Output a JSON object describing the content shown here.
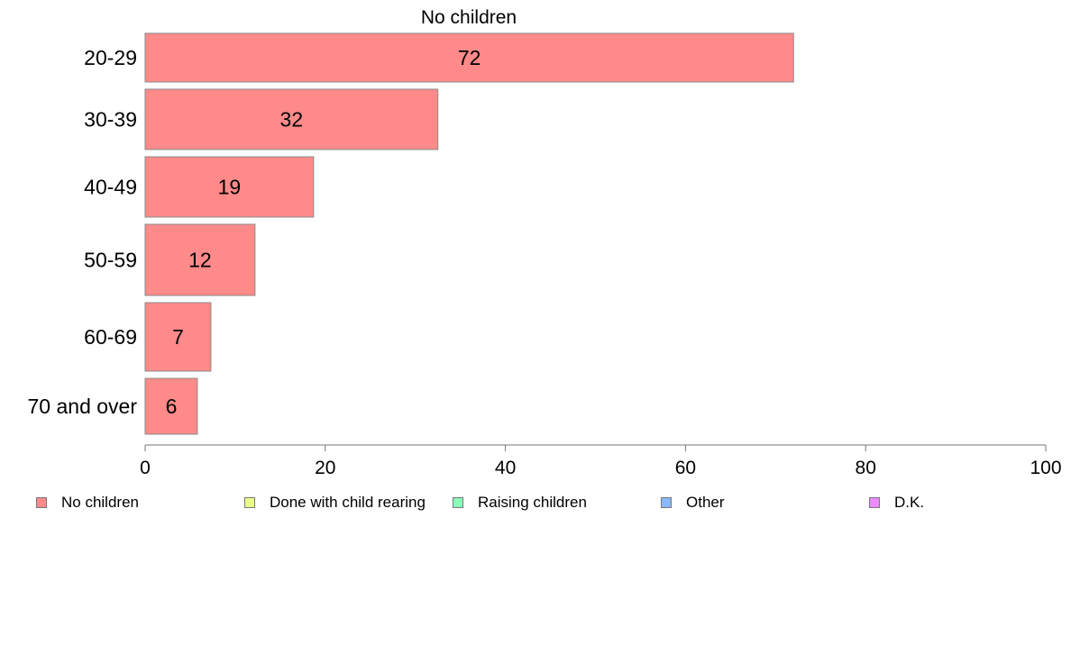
{
  "chart_data": {
    "type": "bar",
    "orientation": "horizontal",
    "title": "No children",
    "categories": [
      "20-29",
      "30-39",
      "40-49",
      "50-59",
      "60-69",
      "70 and over"
    ],
    "series": [
      {
        "name": "No children",
        "color": "#ff8a8a",
        "values": [
          72,
          32.5,
          18.7,
          12.2,
          7.3,
          5.8
        ],
        "labels": [
          "72",
          "32",
          "19",
          "12",
          "7",
          "6"
        ]
      }
    ],
    "xlim": [
      0,
      100
    ],
    "xticks": [
      0,
      20,
      40,
      60,
      80,
      100
    ],
    "xtick_labels": [
      "0",
      "20",
      "40",
      "60",
      "80",
      "100"
    ],
    "grid": false,
    "legend_position": "bottom",
    "legend": [
      {
        "label": "No children",
        "color": "#ff8a8a"
      },
      {
        "label": "Done with child rearing",
        "color": "#ecff8a"
      },
      {
        "label": "Raising children",
        "color": "#8affb8"
      },
      {
        "label": "Other",
        "color": "#8ab8ff"
      },
      {
        "label": "D.K.",
        "color": "#ec8aff"
      }
    ]
  }
}
